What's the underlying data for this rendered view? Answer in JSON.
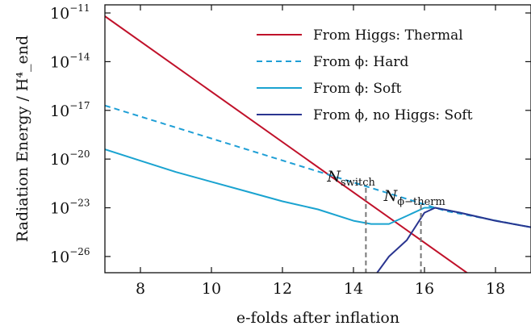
{
  "chart_data": {
    "type": "line",
    "xlabel": "e-folds after inflation",
    "ylabel": "Radiation Energy / H⁴_end",
    "xlim": [
      7,
      19
    ],
    "ylim_log10": [
      -27,
      -10.5
    ],
    "yscale": "log",
    "x_ticks": [
      "8",
      "10",
      "12",
      "14",
      "16",
      "18"
    ],
    "y_ticks": [
      {
        "base": "10",
        "exp": "−11",
        "log10": -11
      },
      {
        "base": "10",
        "exp": "−14",
        "log10": -14
      },
      {
        "base": "10",
        "exp": "−17",
        "log10": -17
      },
      {
        "base": "10",
        "exp": "−20",
        "log10": -20
      },
      {
        "base": "10",
        "exp": "−23",
        "log10": -23
      },
      {
        "base": "10",
        "exp": "−26",
        "log10": -26
      }
    ],
    "legend_position": "top-right",
    "series": [
      {
        "name": "From Higgs: Thermal",
        "color": "#c0112a",
        "style": "solid",
        "x": [
          7,
          19
        ],
        "log10_y": [
          -11.2,
          -29.8
        ]
      },
      {
        "name": "From ϕ: Hard",
        "color": "#1f9fd6",
        "style": "dashed",
        "x": [
          7,
          16.6,
          19
        ],
        "log10_y": [
          -16.7,
          -23.2,
          -24.2
        ]
      },
      {
        "name": "From ϕ: Soft",
        "color": "#1aa3d0",
        "style": "solid",
        "x": [
          7,
          8,
          9,
          10,
          11,
          12,
          13,
          14,
          14.5,
          15,
          15.5,
          16,
          16.3,
          17,
          18,
          19
        ],
        "log10_y": [
          -19.4,
          -20.1,
          -20.8,
          -21.4,
          -22.0,
          -22.6,
          -23.1,
          -23.8,
          -24.0,
          -24.0,
          -23.5,
          -23.0,
          -23.0,
          -23.3,
          -23.8,
          -24.2
        ]
      },
      {
        "name": "From ϕ, no Higgs: Soft",
        "color": "#2a3590",
        "style": "solid",
        "x": [
          14.6,
          15,
          15.5,
          16,
          16.3,
          17,
          18,
          19
        ],
        "log10_y": [
          -27.2,
          -26.0,
          -25.0,
          -23.3,
          -23.0,
          -23.3,
          -23.8,
          -24.2
        ]
      }
    ],
    "annotations": [
      {
        "label": "N",
        "subscript": "switch",
        "x": 14.35
      },
      {
        "label": "N",
        "subscript": "ϕ−therm",
        "x": 15.9
      }
    ]
  }
}
